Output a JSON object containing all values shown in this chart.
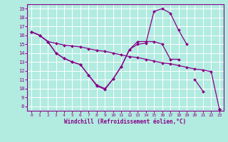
{
  "xlabel": "Windchill (Refroidissement éolien,°C)",
  "background_color": "#b2ebe0",
  "line_color": "#880088",
  "grid_color": "#ffffff",
  "xlim": [
    -0.5,
    23.5
  ],
  "ylim": [
    7.5,
    19.5
  ],
  "yticks": [
    8,
    9,
    10,
    11,
    12,
    13,
    14,
    15,
    16,
    17,
    18,
    19
  ],
  "xticks": [
    0,
    1,
    2,
    3,
    4,
    5,
    6,
    7,
    8,
    9,
    10,
    11,
    12,
    13,
    14,
    15,
    16,
    17,
    18,
    19,
    20,
    21,
    22,
    23
  ],
  "series": [
    {
      "x": [
        0,
        1,
        2,
        3,
        4,
        5,
        6,
        7,
        8,
        9,
        10,
        11,
        12,
        13,
        14,
        15,
        16,
        17,
        18,
        20,
        21,
        22,
        23
      ],
      "y": [
        16.4,
        16.0,
        15.3,
        14.0,
        13.4,
        13.0,
        12.7,
        11.5,
        10.3,
        9.9,
        11.1,
        12.5,
        14.4,
        15.3,
        15.3,
        15.3,
        15.0,
        13.3,
        13.3,
        11.0,
        9.7,
        null,
        7.7
      ],
      "segments": [
        {
          "x": [
            0,
            1,
            2,
            3,
            4,
            5,
            6,
            7,
            8,
            9,
            10,
            11,
            12,
            13,
            14,
            15,
            16,
            17,
            18
          ],
          "y": [
            16.4,
            16.0,
            15.3,
            14.0,
            13.4,
            13.0,
            12.7,
            11.5,
            10.3,
            9.9,
            11.1,
            12.5,
            14.4,
            15.3,
            15.3,
            15.3,
            15.0,
            13.3,
            13.3
          ]
        },
        {
          "x": [
            20,
            21
          ],
          "y": [
            11.0,
            9.7
          ]
        },
        {
          "x": [
            23
          ],
          "y": [
            7.7
          ]
        }
      ]
    },
    {
      "segments": [
        {
          "x": [
            0,
            1,
            2,
            3,
            4,
            5,
            6,
            7,
            8,
            9,
            10,
            11,
            12,
            13,
            14,
            15,
            16,
            17,
            18,
            19
          ],
          "y": [
            16.4,
            16.0,
            15.3,
            14.0,
            13.4,
            13.0,
            12.7,
            11.5,
            10.4,
            10.0,
            11.1,
            12.5,
            14.4,
            15.0,
            15.1,
            18.7,
            19.0,
            18.5,
            16.6,
            15.0
          ]
        },
        {
          "x": [
            23
          ],
          "y": [
            7.7
          ]
        }
      ]
    },
    {
      "segments": [
        {
          "x": [
            0,
            1,
            2,
            3,
            4,
            5,
            6,
            7,
            8,
            9,
            10,
            11,
            12,
            13,
            14,
            15,
            16,
            17,
            18,
            19,
            20,
            21,
            22,
            23
          ],
          "y": [
            16.4,
            16.0,
            15.3,
            15.1,
            14.9,
            14.8,
            14.7,
            14.5,
            14.3,
            14.2,
            14.0,
            13.8,
            13.6,
            13.5,
            13.3,
            13.1,
            12.9,
            12.8,
            12.6,
            12.4,
            12.2,
            12.1,
            11.9,
            7.7
          ]
        }
      ]
    }
  ]
}
